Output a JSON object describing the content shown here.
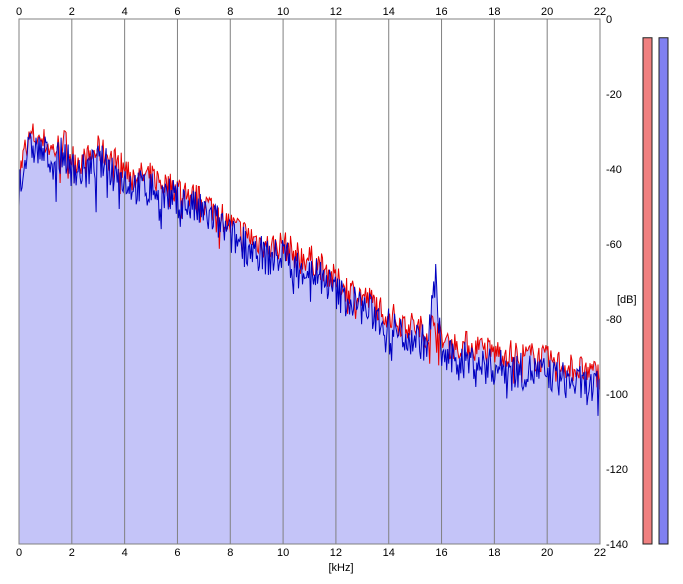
{
  "chart_data": {
    "type": "area",
    "xlabel": "[kHz]",
    "ylabel": "[dB]",
    "xlim": [
      0,
      22
    ],
    "ylim": [
      -140,
      0
    ],
    "xticks": [
      0,
      2,
      4,
      6,
      8,
      10,
      12,
      14,
      16,
      18,
      20,
      22
    ],
    "yticks": [
      0,
      -20,
      -40,
      -60,
      -80,
      -100,
      -120,
      -140
    ],
    "grid": "vertical",
    "legend": "none",
    "colors": {
      "fill": "#c4c4f8",
      "left_channel": "#e80000",
      "right_channel": "#0000c0",
      "left_meter": "#f08080",
      "right_meter": "#8080f0",
      "grid": "#808080"
    },
    "series": [
      {
        "channel": "left",
        "x": [
          0,
          0.25,
          0.5,
          0.75,
          1,
          1.25,
          1.5,
          1.75,
          2,
          2.5,
          3,
          3.5,
          4,
          4.5,
          5,
          5.5,
          6,
          6.5,
          7,
          7.5,
          8,
          8.5,
          9,
          9.5,
          10,
          10.5,
          11,
          11.5,
          12,
          12.5,
          13,
          13.5,
          14,
          14.5,
          15,
          15.5,
          15.75,
          16,
          16.5,
          17,
          17.5,
          18,
          18.5,
          19,
          19.5,
          20,
          20.5,
          21,
          21.5,
          22
        ],
        "values": [
          -42,
          -34,
          -31,
          -32,
          -33,
          -35,
          -34,
          -33,
          -37,
          -38,
          -35,
          -37,
          -40,
          -42,
          -42,
          -44,
          -45,
          -47,
          -49,
          -51,
          -55,
          -57,
          -59,
          -61,
          -60,
          -63,
          -64,
          -66,
          -70,
          -72,
          -74,
          -76,
          -79,
          -81,
          -82,
          -84,
          -80,
          -86,
          -87,
          -87,
          -88,
          -89,
          -89,
          -90,
          -90,
          -91,
          -92,
          -93,
          -94,
          -95
        ]
      },
      {
        "channel": "right",
        "x": [
          0,
          0.25,
          0.5,
          0.75,
          1,
          1.25,
          1.5,
          1.75,
          2,
          2.5,
          3,
          3.5,
          4,
          4.5,
          5,
          5.5,
          6,
          6.5,
          7,
          7.5,
          8,
          8.5,
          9,
          9.5,
          10,
          10.5,
          11,
          11.5,
          12,
          12.5,
          13,
          13.5,
          14,
          14.5,
          15,
          15.5,
          15.75,
          16,
          16.5,
          17,
          17.5,
          18,
          18.5,
          19,
          19.5,
          20,
          20.5,
          21,
          21.5,
          22
        ],
        "values": [
          -45,
          -37,
          -34,
          -35,
          -36,
          -38,
          -37,
          -36,
          -40,
          -41,
          -38,
          -40,
          -43,
          -45,
          -45,
          -47,
          -48,
          -50,
          -52,
          -54,
          -58,
          -60,
          -62,
          -64,
          -63,
          -66,
          -67,
          -69,
          -73,
          -75,
          -77,
          -79,
          -82,
          -84,
          -85,
          -87,
          -67,
          -90,
          -91,
          -91,
          -92,
          -93,
          -93,
          -94,
          -94,
          -95,
          -96,
          -97,
          -98,
          -99
        ]
      }
    ],
    "level_meters": [
      {
        "channel": "left",
        "level_db": -5
      },
      {
        "channel": "right",
        "level_db": -5
      }
    ]
  }
}
